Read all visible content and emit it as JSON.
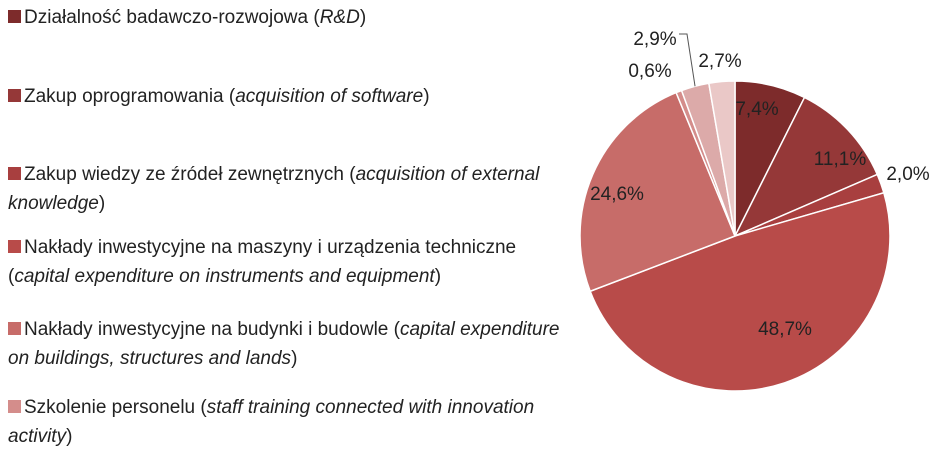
{
  "chart_data": {
    "type": "pie",
    "categories": [
      [
        "Działalność badawczo-rozwojowa (",
        "R&D",
        ")"
      ],
      [
        "Zakup oprogramowania (",
        "acquisition of software",
        ")"
      ],
      [
        "Zakup wiedzy ze źródeł zewnętrznych (",
        "acquisition of external knowledge",
        ")"
      ],
      [
        "Nakłady inwestycyjne na maszyny i urządzenia techniczne (",
        "capital expenditure on instruments and equipment",
        ")"
      ],
      [
        "Nakłady inwestycyjne na budynki i budowle (",
        "capital expenditure on buildings, structures and lands",
        ")"
      ],
      [
        "Szkolenie personelu (",
        "staff training connected with innovation activity",
        ")"
      ],
      null,
      null
    ],
    "values": [
      7.4,
      11.1,
      2.0,
      48.7,
      24.6,
      0.6,
      2.9,
      2.7
    ],
    "value_labels": [
      "7,4%",
      "11,1%",
      "2,0%",
      "48,7%",
      "24,6%",
      "0,6%",
      "2,9%",
      "2,7%"
    ],
    "colors": [
      "#7d2b2b",
      "#953838",
      "#a83f3f",
      "#b84b49",
      "#c76c69",
      "#d48d8b",
      "#dcaaa9",
      "#eac8c7"
    ]
  }
}
